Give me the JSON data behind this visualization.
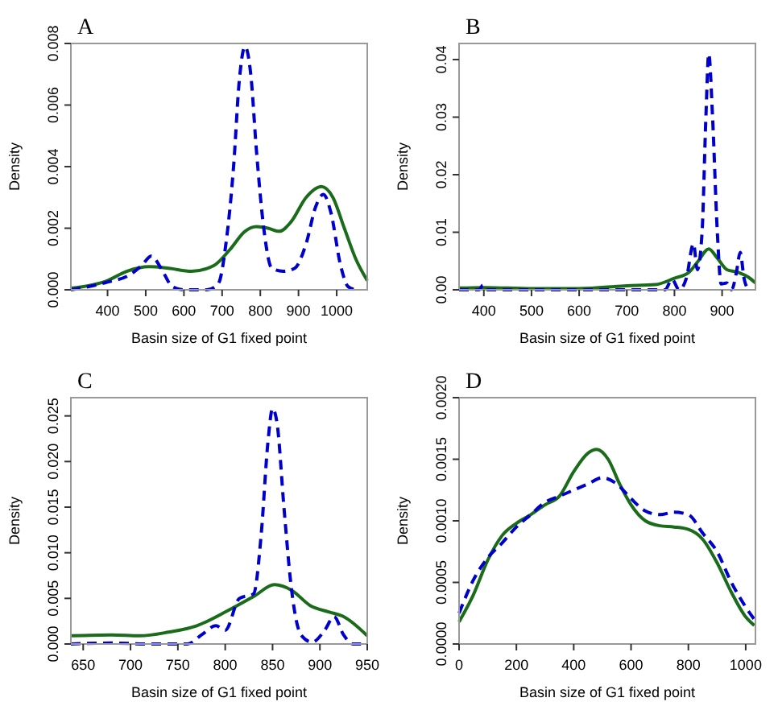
{
  "chart_data": [
    {
      "type": "line",
      "title": "A",
      "xlabel": "Basin size of G1 fixed point",
      "ylabel": "Density",
      "xlim": [
        304,
        1080
      ],
      "xticks": [
        400,
        500,
        600,
        700,
        800,
        900,
        1000
      ],
      "ylim": [
        0,
        0.008
      ],
      "yticks": [
        {
          "value": 0,
          "label": "0.000"
        },
        {
          "value": 0.002,
          "label": "0.002"
        },
        {
          "value": 0.004,
          "label": "0.004"
        },
        {
          "value": 0.006,
          "label": "0.006"
        },
        {
          "value": 0.008,
          "label": "0.008"
        }
      ],
      "series": [
        {
          "color": "#1a6b1a",
          "line_style": "solid",
          "x": [
            304,
            400,
            450,
            510,
            560,
            620,
            680,
            720,
            760,
            790,
            820,
            850,
            880,
            920,
            960,
            990,
            1020,
            1050,
            1080
          ],
          "values": [
            5e-05,
            0.0003,
            0.0006,
            0.00075,
            0.0007,
            0.0006,
            0.0008,
            0.0013,
            0.0019,
            0.00205,
            0.002,
            0.0019,
            0.0022,
            0.003,
            0.00335,
            0.003,
            0.002,
            0.001,
            0.0003
          ]
        },
        {
          "color": "#0000cc",
          "line_style": "dashed",
          "x": [
            304,
            400,
            460,
            490,
            515,
            540,
            570,
            600,
            660,
            690,
            710,
            730,
            745,
            760,
            775,
            790,
            810,
            830,
            860,
            890,
            920,
            945,
            965,
            985,
            1010,
            1030,
            1050
          ],
          "values": [
            0,
            0.00025,
            0.0005,
            0.0008,
            0.0011,
            0.0007,
            0.0001,
            0,
            0,
            0.0002,
            0.0015,
            0.004,
            0.0068,
            0.0079,
            0.007,
            0.0045,
            0.0019,
            0.0007,
            0.0006,
            0.0007,
            0.0015,
            0.0027,
            0.0031,
            0.0025,
            0.0008,
            0.0001,
            0
          ]
        }
      ]
    },
    {
      "type": "line",
      "title": "B",
      "xlabel": "Basin size of G1 fixed point",
      "ylabel": "Density",
      "xlim": [
        348,
        970
      ],
      "xticks": [
        400,
        500,
        600,
        700,
        800,
        900
      ],
      "ylim": [
        0,
        0.0428
      ],
      "yticks": [
        {
          "value": 0,
          "label": "0.00"
        },
        {
          "value": 0.01,
          "label": "0.01"
        },
        {
          "value": 0.02,
          "label": "0.02"
        },
        {
          "value": 0.03,
          "label": "0.03"
        },
        {
          "value": 0.04,
          "label": "0.04"
        }
      ],
      "series": [
        {
          "color": "#1a6b1a",
          "line_style": "solid",
          "x": [
            348,
            400,
            500,
            600,
            700,
            760,
            800,
            830,
            850,
            872,
            890,
            910,
            935,
            955,
            970
          ],
          "values": [
            0.0003,
            0.0004,
            0.0002,
            0.0002,
            0.0007,
            0.0009,
            0.002,
            0.003,
            0.005,
            0.0071,
            0.0055,
            0.0035,
            0.003,
            0.0022,
            0.0012
          ]
        },
        {
          "color": "#0000cc",
          "line_style": "dashed",
          "x": [
            348,
            390,
            398,
            405,
            780,
            795,
            810,
            825,
            840,
            848,
            858,
            866,
            872,
            880,
            890,
            898,
            910,
            920,
            930,
            938,
            946,
            955
          ],
          "values": [
            0,
            0,
            0.0008,
            0,
            0,
            0.0018,
            0,
            0.002,
            0.008,
            0.0035,
            0.01,
            0.03,
            0.041,
            0.03,
            0.01,
            0.001,
            0.0012,
            0,
            0.003,
            0.0065,
            0.002,
            0
          ]
        }
      ]
    },
    {
      "type": "line",
      "title": "C",
      "xlabel": "Basin size of G1 fixed point",
      "ylabel": "Density",
      "xlim": [
        637,
        950
      ],
      "xticks": [
        650,
        700,
        750,
        800,
        850,
        900,
        950
      ],
      "ylim": [
        0,
        0.027
      ],
      "yticks": [
        {
          "value": 0,
          "label": "0.000"
        },
        {
          "value": 0.005,
          "label": "0.005"
        },
        {
          "value": 0.01,
          "label": "0.010"
        },
        {
          "value": 0.015,
          "label": "0.015"
        },
        {
          "value": 0.02,
          "label": "0.020"
        },
        {
          "value": 0.025,
          "label": "0.025"
        }
      ],
      "series": [
        {
          "color": "#1a6b1a",
          "line_style": "solid",
          "x": [
            637,
            680,
            710,
            740,
            770,
            800,
            830,
            852,
            870,
            890,
            910,
            925,
            950
          ],
          "values": [
            0.0009,
            0.001,
            0.0009,
            0.0013,
            0.002,
            0.0035,
            0.0052,
            0.0065,
            0.0059,
            0.0042,
            0.0035,
            0.003,
            0.0009
          ]
        },
        {
          "color": "#0000cc",
          "line_style": "dashed",
          "x": [
            637,
            680,
            720,
            760,
            775,
            790,
            800,
            815,
            830,
            838,
            845,
            850,
            855,
            862,
            870,
            880,
            892,
            905,
            915,
            925,
            935,
            950
          ],
          "values": [
            0,
            0.0001,
            0,
            0,
            0.001,
            0.002,
            0.0015,
            0.005,
            0.0055,
            0.012,
            0.022,
            0.0258,
            0.024,
            0.015,
            0.006,
            0.001,
            0.0002,
            0.0015,
            0.003,
            0.001,
            0,
            0
          ]
        }
      ]
    },
    {
      "type": "line",
      "title": "D",
      "xlabel": "Basin size of G1 fixed point",
      "ylabel": "Density",
      "xlim": [
        0,
        1034
      ],
      "xticks": [
        0,
        200,
        400,
        600,
        800,
        1000
      ],
      "ylim": [
        0,
        0.002
      ],
      "yticks": [
        {
          "value": 0,
          "label": "0.0000"
        },
        {
          "value": 0.0005,
          "label": "0.0005"
        },
        {
          "value": 0.001,
          "label": "0.0010"
        },
        {
          "value": 0.0015,
          "label": "0.0015"
        },
        {
          "value": 0.002,
          "label": "0.0020"
        }
      ],
      "series": [
        {
          "color": "#1a6b1a",
          "line_style": "solid",
          "x": [
            0,
            50,
            100,
            150,
            200,
            250,
            300,
            350,
            400,
            450,
            480,
            520,
            560,
            600,
            650,
            700,
            750,
            800,
            850,
            900,
            950,
            1000,
            1030
          ],
          "values": [
            0.00018,
            0.0004,
            0.00068,
            0.00088,
            0.00098,
            0.00105,
            0.00113,
            0.0012,
            0.0014,
            0.00155,
            0.00158,
            0.0015,
            0.0013,
            0.00113,
            0.001,
            0.00096,
            0.00095,
            0.00093,
            0.00085,
            0.00066,
            0.00042,
            0.00022,
            0.00015
          ]
        },
        {
          "color": "#0000cc",
          "line_style": "dashed",
          "x": [
            0,
            50,
            100,
            150,
            200,
            250,
            300,
            350,
            400,
            450,
            500,
            550,
            600,
            650,
            700,
            750,
            800,
            850,
            900,
            950,
            1000,
            1030
          ],
          "values": [
            0.00025,
            0.00052,
            0.0007,
            0.00082,
            0.00095,
            0.00105,
            0.00115,
            0.0012,
            0.00125,
            0.0013,
            0.00135,
            0.0013,
            0.00118,
            0.00108,
            0.00105,
            0.00107,
            0.00105,
            0.0009,
            0.00075,
            0.0005,
            0.0003,
            0.0002
          ]
        }
      ]
    }
  ]
}
